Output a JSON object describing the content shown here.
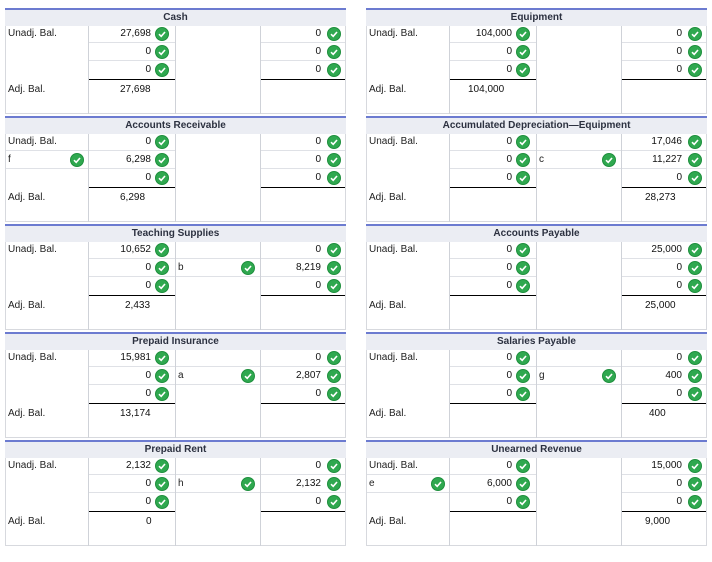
{
  "accounts": {
    "cash": {
      "title": "Cash",
      "label_unadj": "Unadj. Bal.",
      "label_adj": "Adj. Bal.",
      "debit": [
        "27,698",
        "0",
        "0"
      ],
      "debit_adj": "27,698",
      "credit": [
        "0",
        "0",
        "0"
      ]
    },
    "equipment": {
      "title": "Equipment",
      "label_unadj": "Unadj. Bal.",
      "label_adj": "Adj. Bal.",
      "debit": [
        "104,000",
        "0",
        "0"
      ],
      "debit_adj": "104,000",
      "credit": [
        "0",
        "0",
        "0"
      ]
    },
    "accounts_receivable": {
      "title": "Accounts Receivable",
      "label_unadj": "Unadj. Bal.",
      "label_row2": "f",
      "label_adj": "Adj. Bal.",
      "debit": [
        "0",
        "6,298",
        "0"
      ],
      "debit_adj": "6,298",
      "credit": [
        "0",
        "0",
        "0"
      ]
    },
    "accum_depr_equipment": {
      "title": "Accumulated Depreciation—Equipment",
      "label_unadj": "Unadj. Bal.",
      "label_row2_credit": "c",
      "label_adj": "Adj. Bal.",
      "debit": [
        "0",
        "0",
        "0"
      ],
      "credit": [
        "17,046",
        "11,227",
        "0"
      ],
      "credit_adj": "28,273"
    },
    "teaching_supplies": {
      "title": "Teaching Supplies",
      "label_unadj": "Unadj. Bal.",
      "label_row2_credit": "b",
      "label_adj": "Adj. Bal.",
      "debit": [
        "10,652",
        "0",
        "0"
      ],
      "debit_adj": "2,433",
      "credit": [
        "0",
        "8,219",
        "0"
      ]
    },
    "accounts_payable": {
      "title": "Accounts Payable",
      "label_unadj": "Unadj. Bal.",
      "label_adj": "Adj. Bal.",
      "debit": [
        "0",
        "0",
        "0"
      ],
      "credit": [
        "25,000",
        "0",
        "0"
      ],
      "credit_adj": "25,000"
    },
    "prepaid_insurance": {
      "title": "Prepaid Insurance",
      "label_unadj": "Unadj. Bal.",
      "label_row2_credit": "a",
      "label_adj": "Adj. Bal.",
      "debit": [
        "15,981",
        "0",
        "0"
      ],
      "debit_adj": "13,174",
      "credit": [
        "0",
        "2,807",
        "0"
      ]
    },
    "salaries_payable": {
      "title": "Salaries Payable",
      "label_unadj": "Unadj. Bal.",
      "label_row2_credit": "g",
      "label_adj": "Adj. Bal.",
      "debit": [
        "0",
        "0",
        "0"
      ],
      "credit": [
        "0",
        "400",
        "0"
      ],
      "credit_adj": "400"
    },
    "prepaid_rent": {
      "title": "Prepaid Rent",
      "label_unadj": "Unadj. Bal.",
      "label_row2_credit": "h",
      "label_adj": "Adj. Bal.",
      "debit": [
        "2,132",
        "0",
        "0"
      ],
      "debit_adj": "0",
      "credit": [
        "0",
        "2,132",
        "0"
      ]
    },
    "unearned_revenue": {
      "title": "Unearned Revenue",
      "label_unadj": "Unadj. Bal.",
      "label_row2": "e",
      "label_adj": "Adj. Bal.",
      "debit": [
        "0",
        "6,000",
        "0"
      ],
      "credit": [
        "15,000",
        "0",
        "0"
      ],
      "credit_adj": "9,000"
    }
  },
  "colors": {
    "header_bg": "#ebedf3",
    "header_border": "#6c7bd0",
    "check_green": "#2fa84f"
  }
}
